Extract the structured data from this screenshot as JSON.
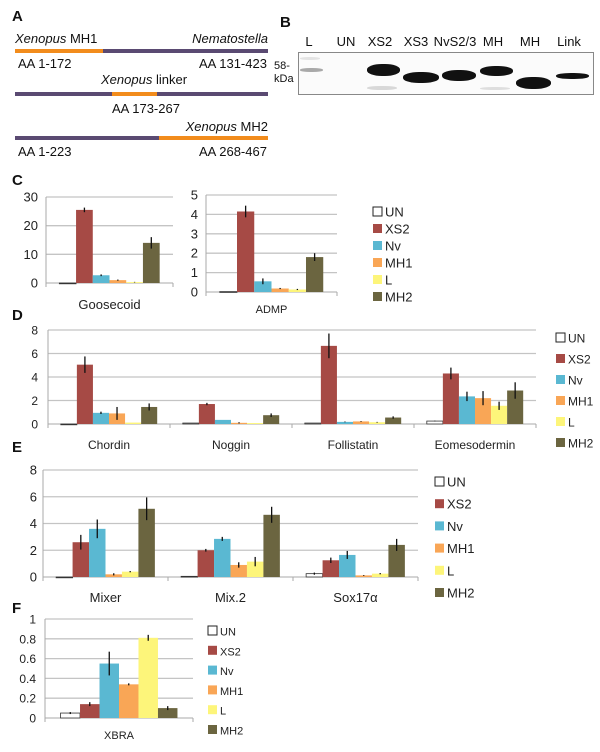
{
  "panels": {
    "a": "A",
    "b": "B",
    "c": "C",
    "d": "D",
    "e": "E",
    "f": "F"
  },
  "panel_a": {
    "construct1": {
      "left_species": "Xenopus",
      "left_domain": "MH1",
      "right_species": "Nematostella",
      "left_range": "AA 1-172",
      "right_range": "AA 131-423"
    },
    "construct2": {
      "species": "Xenopus",
      "domain": "linker",
      "range": "AA 173-267"
    },
    "construct3": {
      "species": "Xenopus",
      "domain": "MH2",
      "left_range": "AA 1-223",
      "right_range": "AA 268-467"
    },
    "colors": {
      "xenopus": "#f28c1c",
      "nematostella": "#5a4a72"
    }
  },
  "panel_b": {
    "lanes": [
      "L",
      "UN",
      "XS2",
      "XS3",
      "NvS2/3",
      "MH\n1",
      "MH\n2",
      "Link"
    ],
    "marker_label_1": "58-",
    "marker_label_2": "kDa"
  },
  "chart_data": [
    {
      "type": "bar",
      "panel": "C",
      "categories": [
        "Goosecoid"
      ],
      "ylim": [
        0,
        30
      ],
      "yticks": [
        0,
        10,
        20,
        30
      ],
      "grid": true,
      "series": [
        {
          "name": "UN",
          "values": [
            0
          ],
          "errors": [
            0
          ],
          "color": "#ffffff"
        },
        {
          "name": "XS2",
          "values": [
            25.5
          ],
          "errors": [
            0.8
          ],
          "color": "#a64a45"
        },
        {
          "name": "Nv",
          "values": [
            2.7
          ],
          "errors": [
            0.3
          ],
          "color": "#5ab8d2"
        },
        {
          "name": "MH1",
          "values": [
            1.0
          ],
          "errors": [
            0.2
          ],
          "color": "#f9a656"
        },
        {
          "name": "L",
          "values": [
            0.3
          ],
          "errors": [
            0.1
          ],
          "color": "#fdf57a"
        },
        {
          "name": "MH2",
          "values": [
            14
          ],
          "errors": [
            2
          ],
          "color": "#6b6540"
        }
      ],
      "legend": "none"
    },
    {
      "type": "bar",
      "panel": "C",
      "categories": [
        "ADMP"
      ],
      "ylim": [
        0,
        5
      ],
      "yticks": [
        0,
        1,
        2,
        3,
        4,
        5
      ],
      "grid": true,
      "series": [
        {
          "name": "UN",
          "values": [
            0.02
          ],
          "errors": [
            0
          ],
          "color": "#ffffff"
        },
        {
          "name": "XS2",
          "values": [
            4.15
          ],
          "errors": [
            0.3
          ],
          "color": "#a64a45"
        },
        {
          "name": "Nv",
          "values": [
            0.55
          ],
          "errors": [
            0.15
          ],
          "color": "#5ab8d2"
        },
        {
          "name": "MH1",
          "values": [
            0.18
          ],
          "errors": [
            0.03
          ],
          "color": "#f9a656"
        },
        {
          "name": "L",
          "values": [
            0.13
          ],
          "errors": [
            0.03
          ],
          "color": "#fdf57a"
        },
        {
          "name": "MH2",
          "values": [
            1.8
          ],
          "errors": [
            0.2
          ],
          "color": "#6b6540"
        }
      ],
      "legend": "right"
    },
    {
      "type": "bar",
      "panel": "D",
      "categories": [
        "Chordin",
        "Noggin",
        "Follistatin",
        "Eomesodermin"
      ],
      "ylim": [
        0,
        8
      ],
      "yticks": [
        0,
        2,
        4,
        6,
        8
      ],
      "grid": true,
      "series": [
        {
          "name": "UN",
          "values": [
            0,
            0.08,
            0.08,
            0.25
          ],
          "errors": [
            0,
            0,
            0,
            0.03
          ],
          "color": "#ffffff"
        },
        {
          "name": "XS2",
          "values": [
            5.05,
            1.7,
            6.65,
            4.3
          ],
          "errors": [
            0.7,
            0.1,
            1.05,
            0.5
          ],
          "color": "#a64a45"
        },
        {
          "name": "Nv",
          "values": [
            0.95,
            0.35,
            0.18,
            2.35
          ],
          "errors": [
            0.1,
            0,
            0.03,
            0.4
          ],
          "color": "#5ab8d2"
        },
        {
          "name": "MH1",
          "values": [
            0.9,
            0.1,
            0.22,
            2.2
          ],
          "errors": [
            0.55,
            0.05,
            0.03,
            0.6
          ],
          "color": "#f9a656"
        },
        {
          "name": "L",
          "values": [
            0.12,
            0.08,
            0.15,
            1.55
          ],
          "errors": [
            0,
            0,
            0.03,
            0.35
          ],
          "color": "#fdf57a"
        },
        {
          "name": "MH2",
          "values": [
            1.45,
            0.75,
            0.55,
            2.85
          ],
          "errors": [
            0.3,
            0.15,
            0.1,
            0.7
          ],
          "color": "#6b6540"
        }
      ],
      "legend": "right"
    },
    {
      "type": "bar",
      "panel": "E",
      "categories": [
        "Mixer",
        "Mix.2",
        "Sox17α"
      ],
      "ylim": [
        0,
        8
      ],
      "yticks": [
        0,
        2,
        4,
        6,
        8
      ],
      "grid": true,
      "series": [
        {
          "name": "UN",
          "values": [
            0,
            0.05,
            0.25
          ],
          "errors": [
            0,
            0,
            0.08
          ],
          "color": "#ffffff"
        },
        {
          "name": "XS2",
          "values": [
            2.6,
            2.0,
            1.25
          ],
          "errors": [
            0.55,
            0.1,
            0.2
          ],
          "color": "#a64a45"
        },
        {
          "name": "Nv",
          "values": [
            3.6,
            2.85,
            1.65
          ],
          "errors": [
            0.7,
            0.15,
            0.3
          ],
          "color": "#5ab8d2"
        },
        {
          "name": "MH1",
          "values": [
            0.2,
            0.9,
            0.12
          ],
          "errors": [
            0.08,
            0.2,
            0.03
          ],
          "color": "#f9a656"
        },
        {
          "name": "L",
          "values": [
            0.4,
            1.15,
            0.25
          ],
          "errors": [
            0.05,
            0.35,
            0.05
          ],
          "color": "#fdf57a"
        },
        {
          "name": "MH2",
          "values": [
            5.1,
            4.65,
            2.4
          ],
          "errors": [
            0.85,
            0.6,
            0.45
          ],
          "color": "#6b6540"
        }
      ],
      "legend": "right"
    },
    {
      "type": "bar",
      "panel": "F",
      "categories": [
        "XBRA"
      ],
      "ylim": [
        0,
        1
      ],
      "yticks": [
        0,
        0.2,
        0.4,
        0.6,
        0.8,
        1
      ],
      "grid": true,
      "series": [
        {
          "name": "UN",
          "values": [
            0.05
          ],
          "errors": [
            0.01
          ],
          "color": "#ffffff"
        },
        {
          "name": "XS2",
          "values": [
            0.14
          ],
          "errors": [
            0.02
          ],
          "color": "#a64a45"
        },
        {
          "name": "Nv",
          "values": [
            0.55
          ],
          "errors": [
            0.12
          ],
          "color": "#5ab8d2"
        },
        {
          "name": "MH1",
          "values": [
            0.34
          ],
          "errors": [
            0.01
          ],
          "color": "#f9a656"
        },
        {
          "name": "L",
          "values": [
            0.81
          ],
          "errors": [
            0.03
          ],
          "color": "#fdf57a"
        },
        {
          "name": "MH2",
          "values": [
            0.1
          ],
          "errors": [
            0.02
          ],
          "color": "#6b6540"
        }
      ],
      "legend": "right"
    }
  ]
}
